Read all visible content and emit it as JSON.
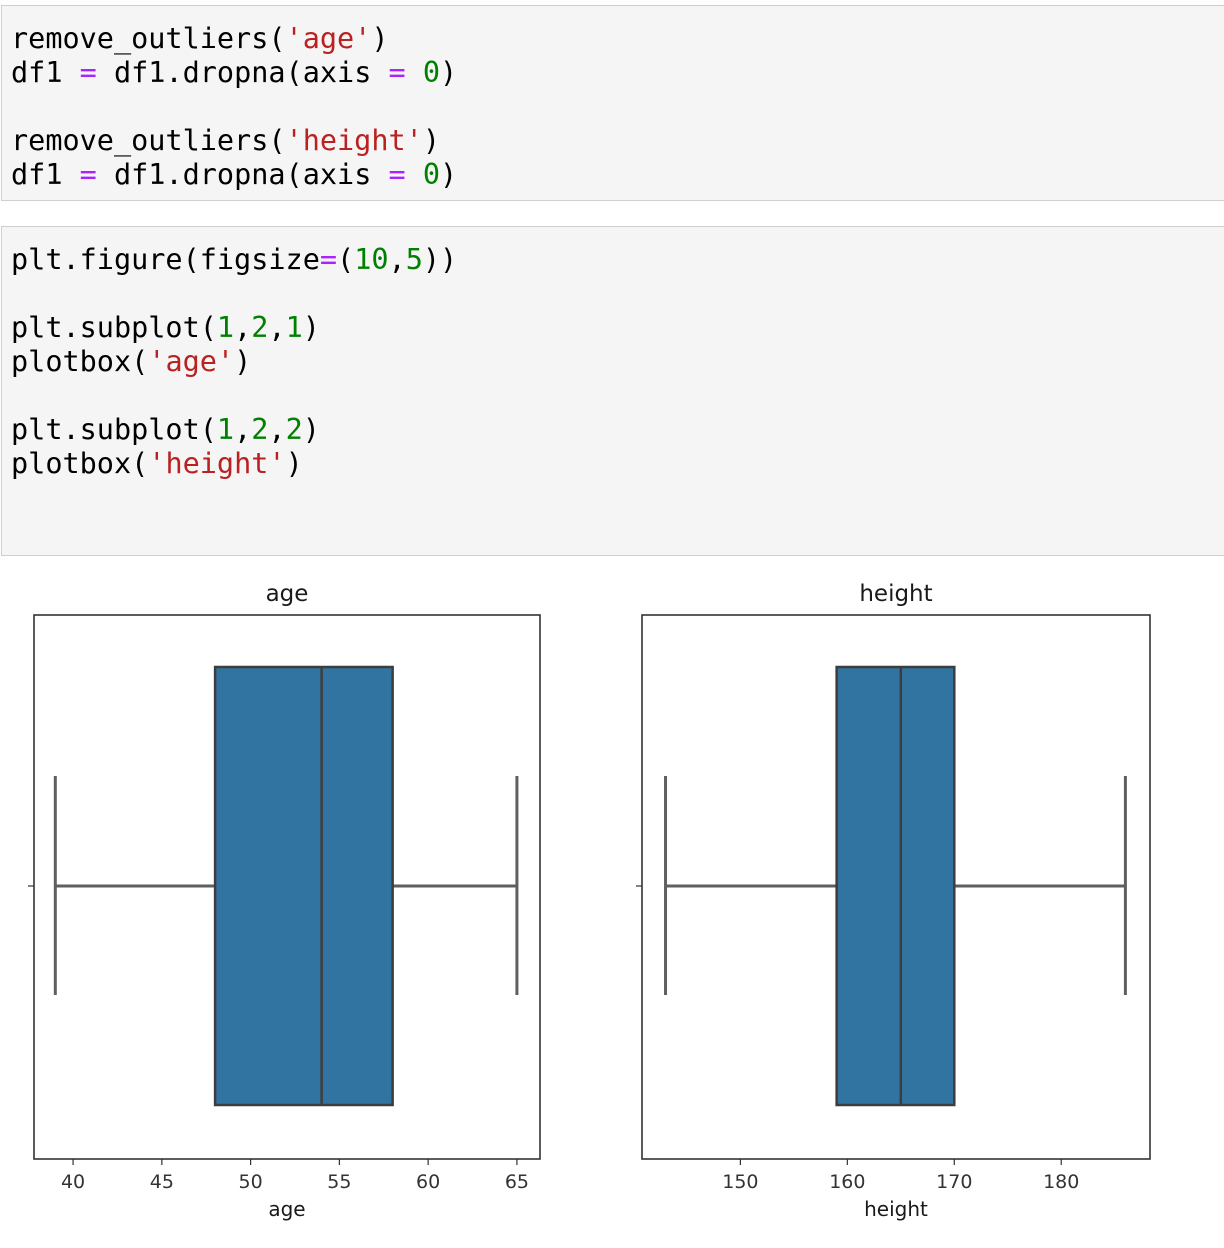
{
  "cells": [
    {
      "lines": [
        [
          {
            "t": "remove_outliers("
          },
          {
            "t": "'age'",
            "k": "s"
          },
          {
            "t": ")"
          }
        ],
        [
          {
            "t": "df1 "
          },
          {
            "t": "=",
            "k": "o"
          },
          {
            "t": " df1.dropna(axis "
          },
          {
            "t": "=",
            "k": "o"
          },
          {
            "t": " "
          },
          {
            "t": "0",
            "k": "n"
          },
          {
            "t": ")"
          }
        ],
        [],
        [
          {
            "t": "remove_outliers("
          },
          {
            "t": "'height'",
            "k": "s"
          },
          {
            "t": ")"
          }
        ],
        [
          {
            "t": "df1 "
          },
          {
            "t": "=",
            "k": "o"
          },
          {
            "t": " df1.dropna(axis "
          },
          {
            "t": "=",
            "k": "o"
          },
          {
            "t": " "
          },
          {
            "t": "0",
            "k": "n"
          },
          {
            "t": ")"
          }
        ]
      ]
    },
    {
      "lines": [
        [
          {
            "t": "plt.figure(figsize"
          },
          {
            "t": "=",
            "k": "o"
          },
          {
            "t": "("
          },
          {
            "t": "10",
            "k": "n"
          },
          {
            "t": ","
          },
          {
            "t": "5",
            "k": "n"
          },
          {
            "t": "))"
          }
        ],
        [],
        [
          {
            "t": "plt.subplot("
          },
          {
            "t": "1",
            "k": "n"
          },
          {
            "t": ","
          },
          {
            "t": "2",
            "k": "n"
          },
          {
            "t": ","
          },
          {
            "t": "1",
            "k": "n"
          },
          {
            "t": ")"
          }
        ],
        [
          {
            "t": "plotbox("
          },
          {
            "t": "'age'",
            "k": "s"
          },
          {
            "t": ")"
          }
        ],
        [],
        [
          {
            "t": "plt.subplot("
          },
          {
            "t": "1",
            "k": "n"
          },
          {
            "t": ","
          },
          {
            "t": "2",
            "k": "n"
          },
          {
            "t": ","
          },
          {
            "t": "2",
            "k": "n"
          },
          {
            "t": ")"
          }
        ],
        [
          {
            "t": "plotbox("
          },
          {
            "t": "'height'",
            "k": "s"
          },
          {
            "t": ")"
          }
        ]
      ]
    }
  ],
  "colors": {
    "string": "#ba2121",
    "number": "#008000",
    "operator": "#aa22ff",
    "box_fill": "#3274a1",
    "box_line": "#3d3d3d",
    "whisker": "#5f5f5f"
  },
  "chart_data": [
    {
      "type": "box",
      "title": "age",
      "xlabel": "age",
      "xlim": [
        37.8,
        66.3
      ],
      "xticks": [
        40,
        45,
        50,
        55,
        60,
        65
      ],
      "whisker_low": 39,
      "q1": 48,
      "median": 54,
      "q3": 58,
      "whisker_high": 65
    },
    {
      "type": "box",
      "title": "height",
      "xlabel": "height",
      "xlim": [
        140.8,
        188.3
      ],
      "xticks": [
        150,
        160,
        170,
        180
      ],
      "whisker_low": 143,
      "q1": 159,
      "median": 165,
      "q3": 170,
      "whisker_high": 186
    }
  ]
}
